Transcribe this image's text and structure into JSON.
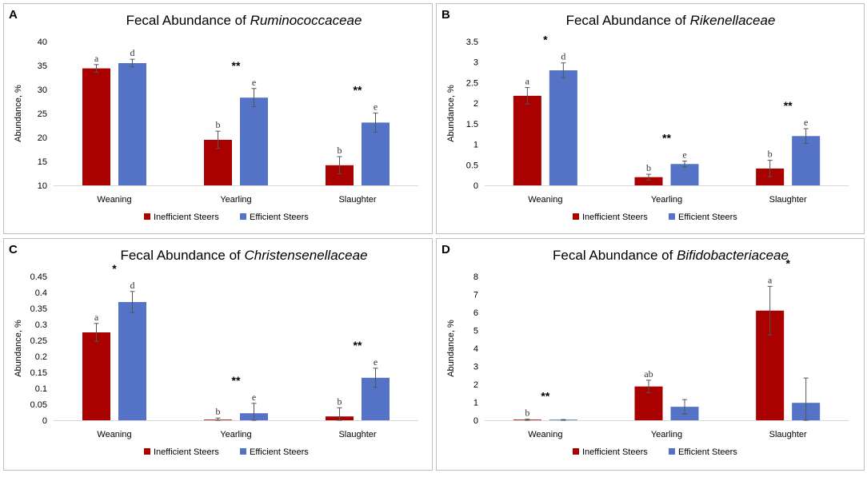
{
  "colors": {
    "inefficient": "#A90000",
    "efficient": "#5473C7",
    "border": "#BFBFBF",
    "gridline": "#D9D9D9",
    "text": "#000000",
    "axis_text": "#333333"
  },
  "legend": [
    "Inefficient Steers",
    "Efficient Steers"
  ],
  "chart_data": [
    {
      "type": "bar",
      "panel": "A",
      "title_prefix": "Fecal Abundance of ",
      "title_taxon": "Ruminococcaceae",
      "ylabel": "Abundance, %",
      "xlabel": "",
      "categories": [
        "Weaning",
        "Yearling",
        "Slaughter"
      ],
      "ylim": [
        10,
        40
      ],
      "yticks": [
        "10",
        "15",
        "20",
        "25",
        "30",
        "35",
        "40"
      ],
      "grid": false,
      "legend_position": "bottom",
      "series": [
        {
          "name": "Inefficient Steers",
          "values": [
            34.4,
            19.5,
            14.2
          ],
          "errors": [
            0.8,
            1.8,
            1.8
          ],
          "labels": [
            "a",
            "b",
            "b"
          ]
        },
        {
          "name": "Efficient Steers",
          "values": [
            35.5,
            28.3,
            23.1
          ],
          "errors": [
            0.8,
            1.9,
            2.0
          ],
          "labels": [
            "d",
            "e",
            "e"
          ]
        }
      ],
      "significance": [
        "",
        "**",
        "**"
      ]
    },
    {
      "type": "bar",
      "panel": "B",
      "title_prefix": "Fecal Abundance of ",
      "title_taxon": "Rikenellaceae",
      "ylabel": "Abundance, %",
      "xlabel": "",
      "categories": [
        "Weaning",
        "Yearling",
        "Slaughter"
      ],
      "ylim": [
        0,
        3.5
      ],
      "yticks": [
        "0",
        "0.5",
        "1",
        "1.5",
        "2",
        "2.5",
        "3",
        "3.5"
      ],
      "grid": false,
      "legend_position": "bottom",
      "series": [
        {
          "name": "Inefficient Steers",
          "values": [
            2.18,
            0.2,
            0.41
          ],
          "errors": [
            0.2,
            0.07,
            0.2
          ],
          "labels": [
            "a",
            "b",
            "b"
          ]
        },
        {
          "name": "Efficient Steers",
          "values": [
            2.8,
            0.52,
            1.2
          ],
          "errors": [
            0.18,
            0.07,
            0.18
          ],
          "labels": [
            "d",
            "e",
            "e"
          ]
        }
      ],
      "significance": [
        "*",
        "**",
        "**"
      ]
    },
    {
      "type": "bar",
      "panel": "C",
      "title_prefix": "Fecal Abundance of ",
      "title_taxon": "Christensenellaceae",
      "ylabel": "Abundance, %",
      "xlabel": "",
      "categories": [
        "Weaning",
        "Yearling",
        "Slaughter"
      ],
      "ylim": [
        0,
        0.45
      ],
      "yticks": [
        "0",
        "0.05",
        "0.1",
        "0.15",
        "0.2",
        "0.25",
        "0.3",
        "0.35",
        "0.4",
        "0.45"
      ],
      "grid": false,
      "legend_position": "bottom",
      "series": [
        {
          "name": "Inefficient Steers",
          "values": [
            0.275,
            0.002,
            0.012
          ],
          "errors": [
            0.028,
            0.005,
            0.027
          ],
          "labels": [
            "a",
            "b",
            "b"
          ]
        },
        {
          "name": "Efficient Steers",
          "values": [
            0.37,
            0.022,
            0.133
          ],
          "errors": [
            0.033,
            0.031,
            0.03
          ],
          "labels": [
            "d",
            "e",
            "e"
          ]
        }
      ],
      "significance": [
        "*",
        "**",
        "**"
      ]
    },
    {
      "type": "bar",
      "panel": "D",
      "title_prefix": "Fecal Abundance of ",
      "title_taxon": "Bifidobacteriaceae",
      "ylabel": "Abundance, %",
      "xlabel": "",
      "categories": [
        "Weaning",
        "Yearling",
        "Slaughter"
      ],
      "ylim": [
        0,
        8
      ],
      "yticks": [
        "0",
        "1",
        "2",
        "3",
        "4",
        "5",
        "6",
        "7",
        "8"
      ],
      "grid": false,
      "legend_position": "bottom",
      "series": [
        {
          "name": "Inefficient Steers",
          "values": [
            0.03,
            1.88,
            6.1
          ],
          "errors": [
            0.03,
            0.35,
            1.35
          ],
          "labels": [
            "b",
            "ab",
            "a"
          ]
        },
        {
          "name": "Efficient Steers",
          "values": [
            0.02,
            0.75,
            0.97
          ],
          "errors": [
            0.02,
            0.4,
            1.38
          ],
          "labels": [
            "",
            "",
            ""
          ]
        }
      ],
      "significance": [
        "**",
        "",
        "*"
      ]
    }
  ]
}
